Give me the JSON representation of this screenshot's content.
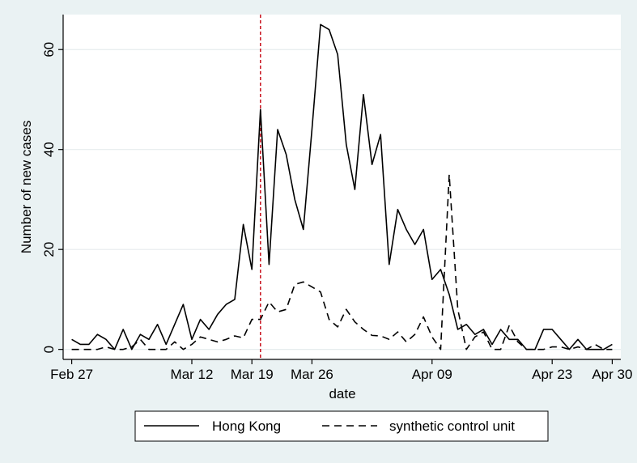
{
  "chart_data": {
    "type": "line",
    "xlabel": "date",
    "ylabel": "Number of new cases",
    "xlim": [
      "2020-02-26",
      "2020-05-01"
    ],
    "ylim": [
      -2,
      67
    ],
    "x_ticks": [
      {
        "date": "2020-02-27",
        "label": "Feb 27"
      },
      {
        "date": "2020-03-12",
        "label": "Mar 12"
      },
      {
        "date": "2020-03-19",
        "label": "Mar 19"
      },
      {
        "date": "2020-03-26",
        "label": "Mar 26"
      },
      {
        "date": "2020-04-09",
        "label": "Apr 09"
      },
      {
        "date": "2020-04-23",
        "label": "Apr 23"
      },
      {
        "date": "2020-04-30",
        "label": "Apr 30"
      }
    ],
    "y_ticks": [
      0,
      20,
      40,
      60
    ],
    "grid": "horizontal",
    "reference_line": {
      "date": "2020-03-20",
      "color": "#cc1f2a",
      "style": "dashed"
    },
    "legend_position": "bottom",
    "series": [
      {
        "name": "Hong Kong",
        "style": "solid",
        "color": "#000000",
        "points": [
          [
            "2020-02-27",
            2
          ],
          [
            "2020-02-28",
            1
          ],
          [
            "2020-02-29",
            1
          ],
          [
            "2020-03-01",
            3
          ],
          [
            "2020-03-02",
            2
          ],
          [
            "2020-03-03",
            0
          ],
          [
            "2020-03-04",
            4
          ],
          [
            "2020-03-05",
            0
          ],
          [
            "2020-03-06",
            3
          ],
          [
            "2020-03-07",
            2
          ],
          [
            "2020-03-08",
            5
          ],
          [
            "2020-03-09",
            1
          ],
          [
            "2020-03-10",
            5
          ],
          [
            "2020-03-11",
            9
          ],
          [
            "2020-03-12",
            2
          ],
          [
            "2020-03-13",
            6
          ],
          [
            "2020-03-14",
            4
          ],
          [
            "2020-03-15",
            7
          ],
          [
            "2020-03-16",
            9
          ],
          [
            "2020-03-17",
            10
          ],
          [
            "2020-03-18",
            25
          ],
          [
            "2020-03-19",
            16
          ],
          [
            "2020-03-20",
            48
          ],
          [
            "2020-03-21",
            17
          ],
          [
            "2020-03-22",
            44
          ],
          [
            "2020-03-23",
            39
          ],
          [
            "2020-03-24",
            30
          ],
          [
            "2020-03-25",
            24
          ],
          [
            "2020-03-26",
            44
          ],
          [
            "2020-03-27",
            65
          ],
          [
            "2020-03-28",
            64
          ],
          [
            "2020-03-29",
            59
          ],
          [
            "2020-03-30",
            41
          ],
          [
            "2020-03-31",
            32
          ],
          [
            "2020-04-01",
            51
          ],
          [
            "2020-04-02",
            37
          ],
          [
            "2020-04-03",
            43
          ],
          [
            "2020-04-04",
            17
          ],
          [
            "2020-04-05",
            28
          ],
          [
            "2020-04-06",
            24
          ],
          [
            "2020-04-07",
            21
          ],
          [
            "2020-04-08",
            24
          ],
          [
            "2020-04-09",
            14
          ],
          [
            "2020-04-10",
            16
          ],
          [
            "2020-04-11",
            11
          ],
          [
            "2020-04-12",
            4
          ],
          [
            "2020-04-13",
            5
          ],
          [
            "2020-04-14",
            3
          ],
          [
            "2020-04-15",
            4
          ],
          [
            "2020-04-16",
            1
          ],
          [
            "2020-04-17",
            4
          ],
          [
            "2020-04-18",
            2
          ],
          [
            "2020-04-19",
            2
          ],
          [
            "2020-04-20",
            0
          ],
          [
            "2020-04-21",
            0
          ],
          [
            "2020-04-22",
            4
          ],
          [
            "2020-04-23",
            4
          ],
          [
            "2020-04-24",
            2
          ],
          [
            "2020-04-25",
            0
          ],
          [
            "2020-04-26",
            2
          ],
          [
            "2020-04-27",
            0
          ],
          [
            "2020-04-28",
            0
          ],
          [
            "2020-04-29",
            0
          ],
          [
            "2020-04-30",
            1
          ]
        ]
      },
      {
        "name": "synthetic control unit",
        "style": "dashed",
        "color": "#000000",
        "points": [
          [
            "2020-02-27",
            0
          ],
          [
            "2020-02-28",
            0
          ],
          [
            "2020-02-29",
            0
          ],
          [
            "2020-03-01",
            0
          ],
          [
            "2020-03-02",
            0.5
          ],
          [
            "2020-03-03",
            0
          ],
          [
            "2020-03-04",
            0
          ],
          [
            "2020-03-05",
            0.5
          ],
          [
            "2020-03-06",
            2
          ],
          [
            "2020-03-07",
            0
          ],
          [
            "2020-03-08",
            0
          ],
          [
            "2020-03-09",
            0
          ],
          [
            "2020-03-10",
            1.5
          ],
          [
            "2020-03-11",
            0
          ],
          [
            "2020-03-12",
            1
          ],
          [
            "2020-03-13",
            2.5
          ],
          [
            "2020-03-14",
            2
          ],
          [
            "2020-03-15",
            1.5
          ],
          [
            "2020-03-16",
            2
          ],
          [
            "2020-03-17",
            2.7
          ],
          [
            "2020-03-18",
            2.3
          ],
          [
            "2020-03-19",
            6
          ],
          [
            "2020-03-20",
            6
          ],
          [
            "2020-03-21",
            9.5
          ],
          [
            "2020-03-22",
            7.5
          ],
          [
            "2020-03-23",
            8
          ],
          [
            "2020-03-24",
            13
          ],
          [
            "2020-03-25",
            13.5
          ],
          [
            "2020-03-26",
            12.5
          ],
          [
            "2020-03-27",
            11.5
          ],
          [
            "2020-03-28",
            6
          ],
          [
            "2020-03-29",
            4.5
          ],
          [
            "2020-03-30",
            8
          ],
          [
            "2020-03-31",
            5.5
          ],
          [
            "2020-04-01",
            4
          ],
          [
            "2020-04-02",
            2.8
          ],
          [
            "2020-04-03",
            2.7
          ],
          [
            "2020-04-04",
            2
          ],
          [
            "2020-04-05",
            3.5
          ],
          [
            "2020-04-06",
            1.5
          ],
          [
            "2020-04-07",
            3
          ],
          [
            "2020-04-08",
            6.5
          ],
          [
            "2020-04-09",
            2.5
          ],
          [
            "2020-04-10",
            0
          ],
          [
            "2020-04-11",
            35
          ],
          [
            "2020-04-12",
            8
          ],
          [
            "2020-04-13",
            0
          ],
          [
            "2020-04-14",
            2.5
          ],
          [
            "2020-04-15",
            3.5
          ],
          [
            "2020-04-16",
            0
          ],
          [
            "2020-04-17",
            0
          ],
          [
            "2020-04-18",
            4.8
          ],
          [
            "2020-04-19",
            1.5
          ],
          [
            "2020-04-20",
            0
          ],
          [
            "2020-04-21",
            0
          ],
          [
            "2020-04-22",
            0
          ],
          [
            "2020-04-23",
            0.5
          ],
          [
            "2020-04-24",
            0.5
          ],
          [
            "2020-04-25",
            0
          ],
          [
            "2020-04-26",
            0.5
          ],
          [
            "2020-04-27",
            0
          ],
          [
            "2020-04-28",
            1
          ],
          [
            "2020-04-29",
            0
          ],
          [
            "2020-04-30",
            0
          ]
        ]
      }
    ]
  }
}
